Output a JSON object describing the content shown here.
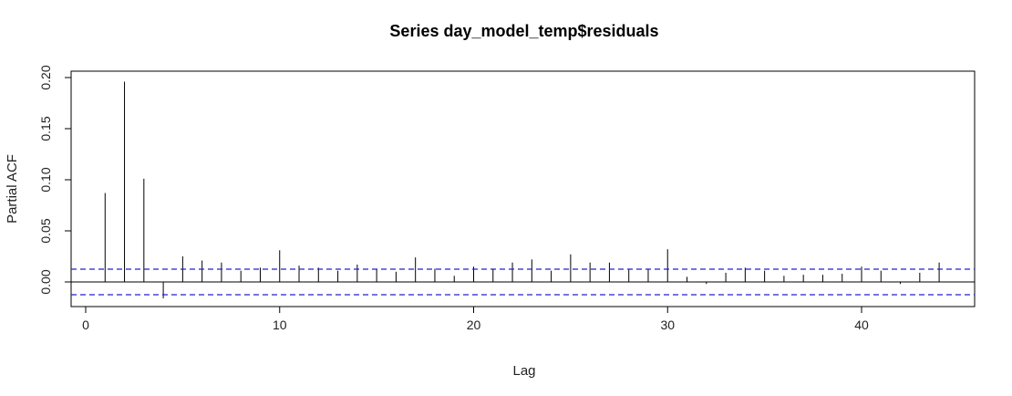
{
  "chart_data": {
    "type": "bar",
    "title": "Series  day_model_temp$residuals",
    "xlabel": "Lag",
    "ylabel": "Partial ACF",
    "xlim": [
      0,
      45
    ],
    "ylim": [
      -0.025,
      0.205
    ],
    "x_ticks": [
      0,
      10,
      20,
      30,
      40
    ],
    "y_ticks": [
      0.0,
      0.05,
      0.1,
      0.15,
      0.2
    ],
    "x_tick_labels": [
      "0",
      "10",
      "20",
      "30",
      "40"
    ],
    "y_tick_labels": [
      "0.00",
      "0.05",
      "0.10",
      "0.15",
      "0.20"
    ],
    "confidence_bound": 0.0125,
    "colors": {
      "bars": "#000000",
      "confidence": "#2020d0",
      "zero_line": "#000000"
    },
    "lags": [
      1,
      2,
      3,
      4,
      5,
      6,
      7,
      8,
      9,
      10,
      11,
      12,
      13,
      14,
      15,
      16,
      17,
      18,
      19,
      20,
      21,
      22,
      23,
      24,
      25,
      26,
      27,
      28,
      29,
      30,
      31,
      32,
      33,
      34,
      35,
      36,
      37,
      38,
      39,
      40,
      41,
      42,
      43,
      44
    ],
    "values": [
      0.087,
      0.196,
      0.101,
      -0.016,
      0.025,
      0.021,
      0.019,
      0.011,
      0.014,
      0.031,
      0.016,
      0.014,
      0.011,
      0.017,
      0.013,
      0.01,
      0.024,
      0.013,
      0.006,
      0.015,
      0.013,
      0.019,
      0.022,
      0.011,
      0.027,
      0.019,
      0.019,
      0.012,
      0.013,
      0.032,
      0.005,
      -0.002,
      0.009,
      0.014,
      0.011,
      0.006,
      0.007,
      0.007,
      0.008,
      0.015,
      0.011,
      -0.002,
      0.009,
      0.019
    ]
  }
}
